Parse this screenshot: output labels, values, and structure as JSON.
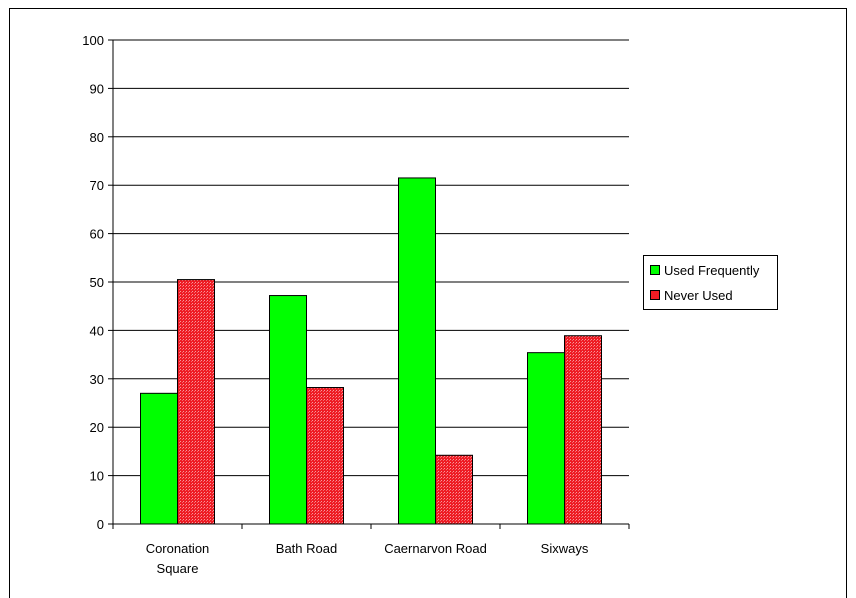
{
  "chart_data": {
    "type": "bar",
    "categories": [
      "Coronation Square",
      "Bath Road",
      "Caernarvon Road",
      "Sixways"
    ],
    "category_lines": [
      [
        "Coronation",
        "Square"
      ],
      [
        "Bath Road"
      ],
      [
        "Caernarvon Road"
      ],
      [
        "Sixways"
      ]
    ],
    "series": [
      {
        "name": "Used Frequently",
        "values": [
          27,
          47.2,
          71.5,
          35.4
        ],
        "color": "#00ff00"
      },
      {
        "name": "Never Used",
        "values": [
          50.5,
          28.2,
          14.2,
          38.9
        ],
        "color": "#ee1c24"
      }
    ],
    "ylim": [
      0,
      100
    ],
    "yticks": [
      0,
      10,
      20,
      30,
      40,
      50,
      60,
      70,
      80,
      90,
      100
    ],
    "grid": true,
    "legend_position": "right",
    "title": "",
    "xlabel": "",
    "ylabel": ""
  }
}
